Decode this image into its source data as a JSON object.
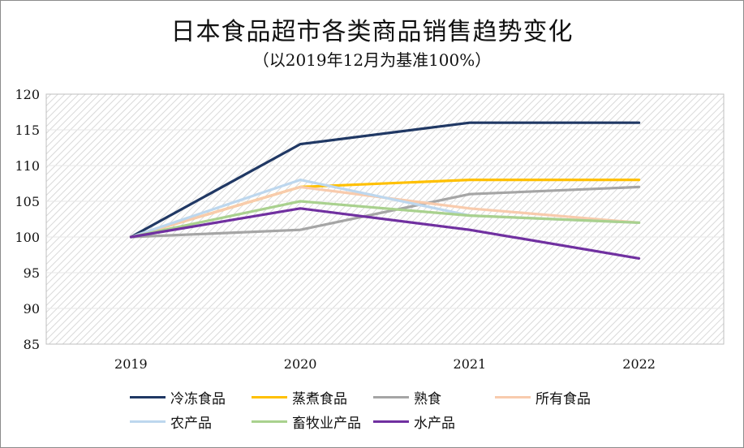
{
  "chart_data": {
    "type": "line",
    "title": "日本食品超市各类商品销售趋势变化",
    "subtitle": "（以2019年12月为基准100%）",
    "categories": [
      "2019",
      "2020",
      "2021",
      "2022"
    ],
    "ylim": [
      85,
      120
    ],
    "yticks": [
      85,
      90,
      95,
      100,
      105,
      110,
      115,
      120
    ],
    "grid": true,
    "legend_position": "bottom",
    "series": [
      {
        "name": "冷冻食品",
        "color": "#203864",
        "values": [
          100,
          113,
          116,
          116
        ]
      },
      {
        "name": "蒸煮食品",
        "color": "#ffc000",
        "values": [
          100,
          107,
          108,
          108
        ]
      },
      {
        "name": "熟食",
        "color": "#a5a5a5",
        "values": [
          100,
          101,
          106,
          107
        ]
      },
      {
        "name": "所有食品",
        "color": "#f8cbad",
        "values": [
          100,
          107,
          104,
          102
        ]
      },
      {
        "name": "农产品",
        "color": "#bdd7ee",
        "values": [
          100,
          108,
          103,
          102
        ]
      },
      {
        "name": "畜牧业产品",
        "color": "#a9d18e",
        "values": [
          100,
          105,
          103,
          102
        ]
      },
      {
        "name": "水产品",
        "color": "#7030a0",
        "values": [
          100,
          104,
          101,
          97
        ]
      }
    ]
  }
}
